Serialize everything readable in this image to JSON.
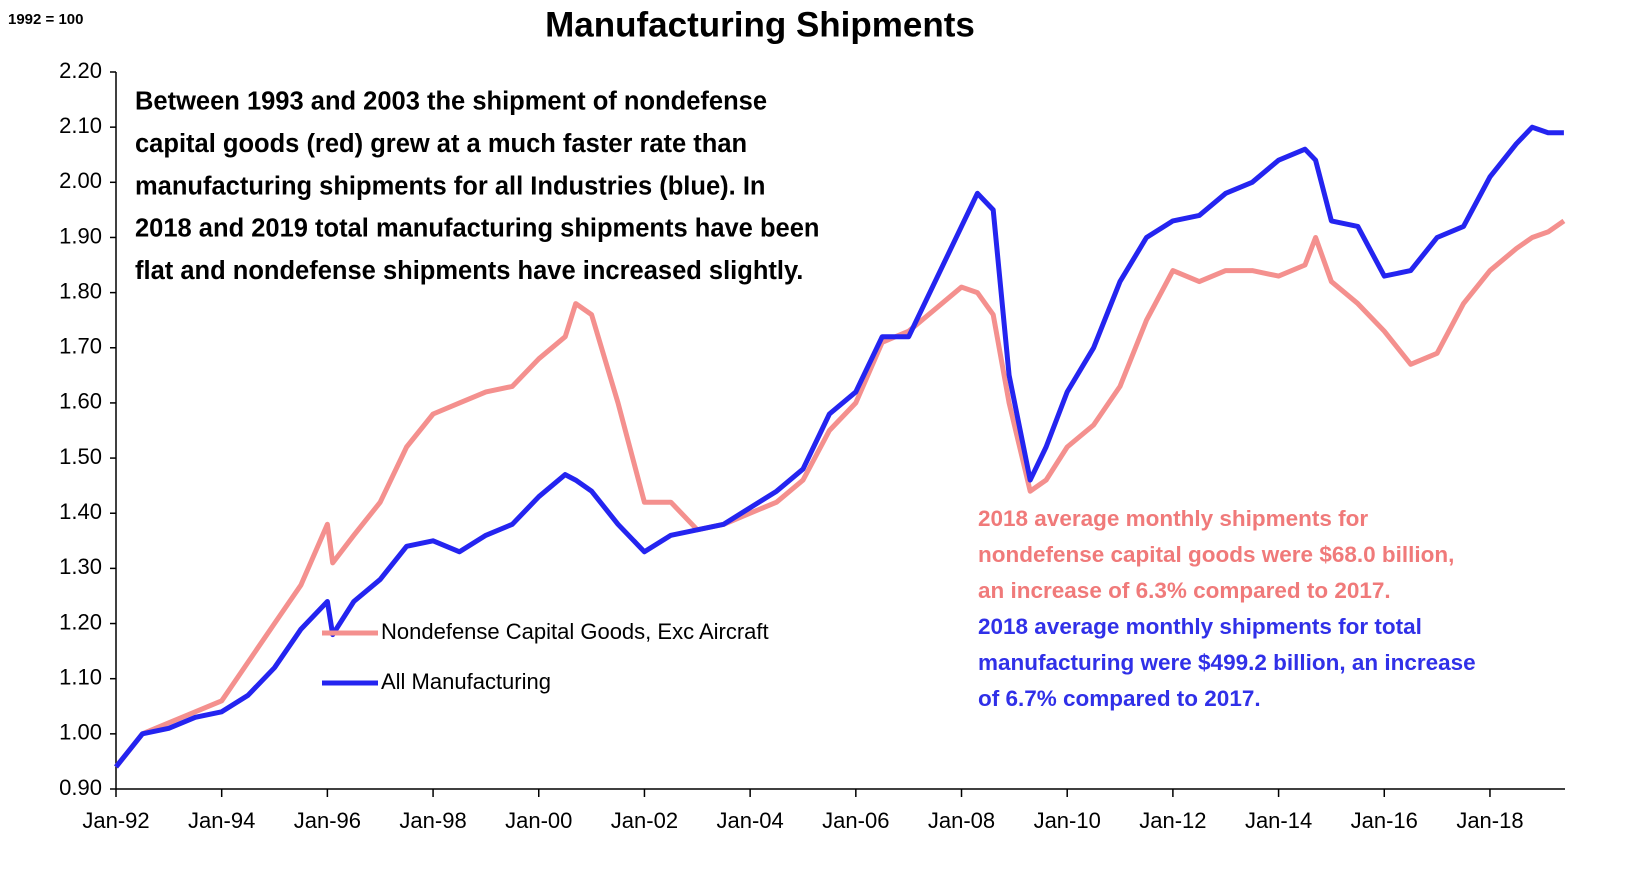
{
  "chart_data": {
    "type": "line",
    "title": "Manufacturing Shipments",
    "y_unit_label": "1992 = 100",
    "annotation": {
      "lines": [
        "Between 1993 and 2003 the shipment of nondefense",
        "capital goods (red) grew at a much faster rate than",
        "manufacturing shipments for all Industries (blue). In",
        "2018 and 2019 total manufacturing shipments have been",
        "flat and nondefense shipments have increased slightly."
      ]
    },
    "note_red": {
      "lines": [
        "2018 average monthly shipments for",
        "nondefense capital goods were $68.0 billion,",
        "an increase of 6.3% compared to 2017."
      ]
    },
    "note_blue": {
      "lines": [
        "2018 average monthly shipments for total",
        "manufacturing were $499.2 billion, an increase",
        "of 6.7% compared to 2017."
      ]
    },
    "x": [
      1992.0,
      1992.5,
      1993.0,
      1993.5,
      1994.0,
      1994.5,
      1995.0,
      1995.5,
      1996.0,
      1996.1,
      1996.5,
      1997.0,
      1997.5,
      1998.0,
      1998.5,
      1999.0,
      1999.5,
      2000.0,
      2000.5,
      2000.7,
      2001.0,
      2001.5,
      2002.0,
      2002.5,
      2003.0,
      2003.5,
      2004.0,
      2004.5,
      2005.0,
      2005.5,
      2006.0,
      2006.5,
      2007.0,
      2007.5,
      2008.0,
      2008.3,
      2008.6,
      2008.9,
      2009.3,
      2009.6,
      2010.0,
      2010.5,
      2011.0,
      2011.5,
      2012.0,
      2012.5,
      2013.0,
      2013.5,
      2014.0,
      2014.5,
      2014.7,
      2015.0,
      2015.5,
      2016.0,
      2016.5,
      2017.0,
      2017.5,
      2018.0,
      2018.5,
      2018.8,
      2019.1,
      2019.4
    ],
    "series": [
      {
        "name": "Nondefense Capital Goods, Exc Aircraft",
        "color": "#f4908e",
        "values": [
          0.94,
          1.0,
          1.02,
          1.04,
          1.06,
          1.13,
          1.2,
          1.27,
          1.38,
          1.31,
          1.36,
          1.42,
          1.52,
          1.58,
          1.6,
          1.62,
          1.63,
          1.68,
          1.72,
          1.78,
          1.76,
          1.6,
          1.42,
          1.42,
          1.37,
          1.38,
          1.4,
          1.42,
          1.46,
          1.55,
          1.6,
          1.71,
          1.73,
          1.77,
          1.81,
          1.8,
          1.76,
          1.6,
          1.44,
          1.46,
          1.52,
          1.56,
          1.63,
          1.75,
          1.84,
          1.82,
          1.84,
          1.84,
          1.83,
          1.85,
          1.9,
          1.82,
          1.78,
          1.73,
          1.67,
          1.69,
          1.78,
          1.84,
          1.88,
          1.9,
          1.91,
          1.93
        ]
      },
      {
        "name": "All Manufacturing",
        "color": "#2424f0",
        "values": [
          0.94,
          1.0,
          1.01,
          1.03,
          1.04,
          1.07,
          1.12,
          1.19,
          1.24,
          1.18,
          1.24,
          1.28,
          1.34,
          1.35,
          1.33,
          1.36,
          1.38,
          1.43,
          1.47,
          1.46,
          1.44,
          1.38,
          1.33,
          1.36,
          1.37,
          1.38,
          1.41,
          1.44,
          1.48,
          1.58,
          1.62,
          1.72,
          1.72,
          1.82,
          1.92,
          1.98,
          1.95,
          1.65,
          1.46,
          1.52,
          1.62,
          1.7,
          1.82,
          1.9,
          1.93,
          1.94,
          1.98,
          2.0,
          2.04,
          2.06,
          2.04,
          1.93,
          1.92,
          1.83,
          1.84,
          1.9,
          1.92,
          2.01,
          2.07,
          2.1,
          2.09,
          2.09
        ]
      }
    ],
    "xlim": [
      1992,
      2019.42
    ],
    "xticks": [
      {
        "value": 1992,
        "label": "Jan-92"
      },
      {
        "value": 1994,
        "label": "Jan-94"
      },
      {
        "value": 1996,
        "label": "Jan-96"
      },
      {
        "value": 1998,
        "label": "Jan-98"
      },
      {
        "value": 2000,
        "label": "Jan-00"
      },
      {
        "value": 2002,
        "label": "Jan-02"
      },
      {
        "value": 2004,
        "label": "Jan-04"
      },
      {
        "value": 2006,
        "label": "Jan-06"
      },
      {
        "value": 2008,
        "label": "Jan-08"
      },
      {
        "value": 2010,
        "label": "Jan-10"
      },
      {
        "value": 2012,
        "label": "Jan-12"
      },
      {
        "value": 2014,
        "label": "Jan-14"
      },
      {
        "value": 2016,
        "label": "Jan-16"
      },
      {
        "value": 2018,
        "label": "Jan-18"
      }
    ],
    "ylim": [
      0.9,
      2.2
    ],
    "yticks": [
      {
        "value": 0.9,
        "label": "0.90"
      },
      {
        "value": 1.0,
        "label": "1.00"
      },
      {
        "value": 1.1,
        "label": "1.10"
      },
      {
        "value": 1.2,
        "label": "1.20"
      },
      {
        "value": 1.3,
        "label": "1.30"
      },
      {
        "value": 1.4,
        "label": "1.40"
      },
      {
        "value": 1.5,
        "label": "1.50"
      },
      {
        "value": 1.6,
        "label": "1.60"
      },
      {
        "value": 1.7,
        "label": "1.70"
      },
      {
        "value": 1.8,
        "label": "1.80"
      },
      {
        "value": 1.9,
        "label": "1.90"
      },
      {
        "value": 2.0,
        "label": "2.00"
      },
      {
        "value": 2.1,
        "label": "2.10"
      },
      {
        "value": 2.2,
        "label": "2.20"
      }
    ],
    "grid": false,
    "legend": "left",
    "note_red_color": "#f07a7a",
    "note_blue_color": "#3030e8"
  }
}
